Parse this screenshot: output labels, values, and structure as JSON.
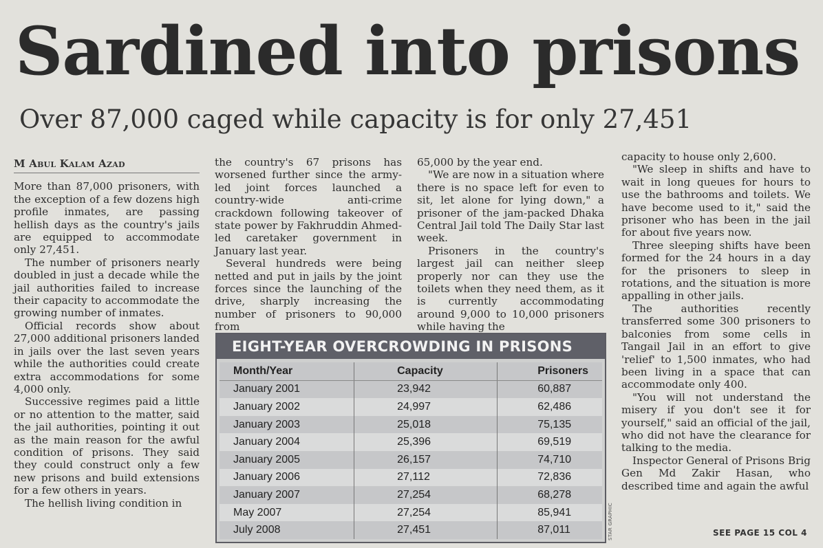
{
  "headline": "Sardined into prisons",
  "subhead": "Over 87,000 caged while capacity is for only 27,451",
  "byline": "M Abul Kalam Azad",
  "col1": [
    "More than 87,000 prisoners, with the exception of a few dozens high profile inmates, are passing hellish days as the country's jails are equipped to accommodate only 27,451.",
    "The number of prisoners nearly doubled in just a decade while the jail authorities failed to increase their capacity to accommodate the growing number of inmates.",
    "Official records show about 27,000 additional prisoners landed in jails over the last seven years while the authorities could create extra accommodations for some 4,000 only.",
    "Successive regimes paid a little or no attention to the matter, said the jail authorities, pointing it out as the main reason for the awful condition of prisons. They said they could construct only a few new prisons and build extensions for a few others in years.",
    "The hellish living condition in"
  ],
  "col2": [
    "the country's 67 prisons has worsened further since the army-led joint forces launched a country-wide anti-crime crackdown following takeover of state power by Fakhruddin Ahmed-led caretaker government in January last year.",
    "Several hundreds were being netted and put in jails by the joint forces since the launching of the drive, sharply increasing the number of prisoners to 90,000 from"
  ],
  "col3": [
    "65,000 by the year end.",
    "\"We are now in a situation where there is no space left for even to sit, let alone for lying down,\" a prisoner of the jam-packed Dhaka Central Jail told The Daily Star last week.",
    "Prisoners in the country's largest jail can neither sleep properly nor can they use the toilets when they need them, as it is currently accommodating around 9,000 to 10,000 prisoners while having the"
  ],
  "col4": [
    "capacity to house only 2,600.",
    "\"We sleep in shifts and have to wait in long queues for hours to use the bathrooms and toilets. We have become used to it,\" said the prisoner who has been in the jail for about five years now.",
    "Three sleeping shifts have been formed for the 24 hours in a day for the prisoners to sleep in rotations, and the situation is more appalling in other jails.",
    "The authorities recently transferred some 300 prisoners to balconies from some cells in Tangail Jail in an effort to give 'relief' to 1,500 inmates, who had been living in a space that can accommodate only 400.",
    "\"You will not understand the misery if you don't see it for yourself,\" said an official of the jail, who did not have the clearance for talking to the media.",
    "Inspector General of Prisons Brig Gen Md Zakir Hasan, who described time and again the awful"
  ],
  "see_page": "SEE PAGE 15 COL 4",
  "table": {
    "title": "EIGHT-YEAR OVERCROWDING IN PRISONS",
    "credit": "STAR GRAPHIC",
    "headers": [
      "Month/Year",
      "Capacity",
      "Prisoners"
    ],
    "rows": [
      [
        "January 2001",
        "23,942",
        "60,887"
      ],
      [
        "January 2002",
        "24,997",
        "62,486"
      ],
      [
        "January 2003",
        "25,018",
        "75,135"
      ],
      [
        "January 2004",
        "25,396",
        "69,519"
      ],
      [
        "January 2005",
        "26,157",
        "74,710"
      ],
      [
        "January 2006",
        "27,112",
        "72,836"
      ],
      [
        "January 2007",
        "27,254",
        "68,278"
      ],
      [
        "May 2007",
        "27,254",
        "85,941"
      ],
      [
        "July 2008",
        "27,451",
        "87,011"
      ]
    ]
  }
}
